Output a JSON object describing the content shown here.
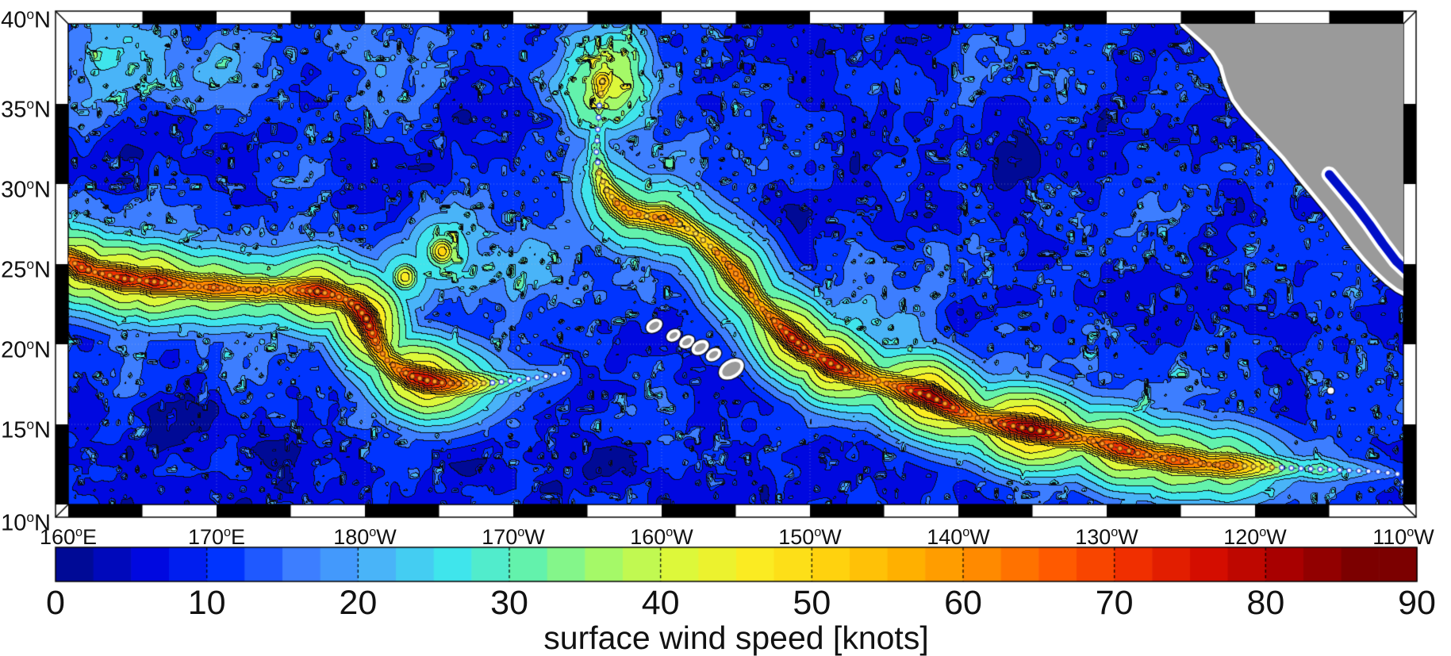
{
  "figure": {
    "type": "filled-contour-map",
    "title": "surface wind speed [knots]"
  },
  "axes": {
    "x_ticks": [
      {
        "label": "160°E",
        "lon": 160
      },
      {
        "label": "170°E",
        "lon": 170
      },
      {
        "label": "180°W",
        "lon": 180
      },
      {
        "label": "170°W",
        "lon": 190
      },
      {
        "label": "160°W",
        "lon": 200
      },
      {
        "label": "150°W",
        "lon": 210
      },
      {
        "label": "140°W",
        "lon": 220
      },
      {
        "label": "130°W",
        "lon": 230
      },
      {
        "label": "120°W",
        "lon": 240
      },
      {
        "label": "110°W",
        "lon": 250
      }
    ],
    "y_ticks": [
      {
        "label": "40°N",
        "lat": 40
      },
      {
        "label": "35°N",
        "lat": 35
      },
      {
        "label": "30°N",
        "lat": 30
      },
      {
        "label": "25°N",
        "lat": 25
      },
      {
        "label": "20°N",
        "lat": 20
      },
      {
        "label": "15°N",
        "lat": 15
      },
      {
        "label": "10°N",
        "lat": 10
      }
    ]
  },
  "colorbar": {
    "label": "surface wind speed [knots]",
    "orientation": "horizontal",
    "min": 0,
    "max": 90,
    "segment_step": 2.5,
    "tick_values": [
      0,
      10,
      20,
      30,
      40,
      50,
      60,
      70,
      80,
      90
    ],
    "tick_labels": [
      "0",
      "10",
      "20",
      "30",
      "40",
      "50",
      "60",
      "70",
      "80",
      "90"
    ]
  },
  "chart_data": {
    "type": "heatmap",
    "title": "surface wind speed [knots]",
    "units": "knots",
    "lon_range_deg_east": [
      160,
      250
    ],
    "lat_range_deg_north": [
      10,
      40
    ],
    "grid_lon_step": 10,
    "grid_lat_step": 5,
    "levels": [
      0,
      5,
      10,
      15,
      20,
      25,
      30,
      35,
      40,
      45,
      50,
      55,
      60,
      65,
      70,
      75,
      80,
      85,
      90
    ],
    "palette": [
      "#000A96",
      "#0008E0",
      "#0034FE",
      "#3D7EFF",
      "#49B4F8",
      "#3FE5EC",
      "#63F2AC",
      "#A5F968",
      "#DDF83A",
      "#FBEB22",
      "#FFD20E",
      "#FFB000",
      "#FF8A00",
      "#FF5A00",
      "#F02F00",
      "#D40D00",
      "#A80000",
      "#7C0000"
    ],
    "land_color": "#9A9A9A",
    "coast_buffer_color": "#FFFFFF",
    "contour_line_color": "#0A0C12",
    "tracks": [
      {
        "name": "storm-track-west",
        "points": [
          [
            160.0,
            25.3,
            66
          ],
          [
            160.9,
            24.8,
            76
          ],
          [
            161.8,
            24.5,
            70
          ],
          [
            162.8,
            24.3,
            74
          ],
          [
            163.8,
            24.1,
            79
          ],
          [
            164.8,
            24.0,
            72
          ],
          [
            165.8,
            23.9,
            79
          ],
          [
            166.8,
            23.8,
            72
          ],
          [
            167.8,
            23.7,
            66
          ],
          [
            168.8,
            23.6,
            64
          ],
          [
            169.8,
            23.55,
            68
          ],
          [
            170.8,
            23.5,
            64
          ],
          [
            171.8,
            23.45,
            60
          ],
          [
            172.8,
            23.4,
            62
          ],
          [
            173.8,
            23.4,
            58
          ],
          [
            174.8,
            23.4,
            62
          ],
          [
            175.8,
            23.35,
            70
          ],
          [
            176.8,
            23.3,
            78
          ],
          [
            177.8,
            23.1,
            72
          ],
          [
            178.7,
            22.8,
            68
          ],
          [
            179.5,
            22.3,
            78
          ],
          [
            180.1,
            21.6,
            84
          ],
          [
            180.5,
            20.7,
            76
          ],
          [
            180.9,
            19.8,
            64
          ],
          [
            181.5,
            19.0,
            58
          ],
          [
            182.3,
            18.4,
            66
          ],
          [
            183.2,
            18.0,
            78
          ],
          [
            184.2,
            17.75,
            82
          ],
          [
            185.2,
            17.6,
            74
          ],
          [
            186.3,
            17.55,
            62
          ],
          [
            187.4,
            17.55,
            50
          ],
          [
            188.6,
            17.6,
            38
          ],
          [
            189.8,
            17.7,
            30
          ],
          [
            191.0,
            17.85,
            25
          ],
          [
            192.2,
            18.0,
            21
          ],
          [
            193.4,
            18.2,
            18
          ]
        ]
      },
      {
        "name": "storm-track-east",
        "points": [
          [
            196.0,
            36.4,
            57
          ],
          [
            195.8,
            34.9,
            38
          ],
          [
            195.7,
            33.4,
            30
          ],
          [
            195.6,
            32.0,
            32
          ],
          [
            195.8,
            30.7,
            42
          ],
          [
            196.3,
            29.6,
            52
          ],
          [
            197.0,
            28.8,
            58
          ],
          [
            197.9,
            28.2,
            60
          ],
          [
            199.0,
            28.0,
            57
          ],
          [
            200.1,
            27.9,
            62
          ],
          [
            201.2,
            27.5,
            57
          ],
          [
            202.3,
            26.9,
            52
          ],
          [
            203.3,
            26.1,
            56
          ],
          [
            204.2,
            25.3,
            60
          ],
          [
            205.0,
            24.4,
            66
          ],
          [
            205.7,
            23.5,
            62
          ],
          [
            206.4,
            22.6,
            58
          ],
          [
            207.2,
            21.8,
            63
          ],
          [
            208.0,
            21.1,
            72
          ],
          [
            208.8,
            20.4,
            80
          ],
          [
            209.6,
            19.8,
            78
          ],
          [
            210.5,
            19.3,
            70
          ],
          [
            211.4,
            18.8,
            82
          ],
          [
            212.4,
            18.4,
            74
          ],
          [
            213.5,
            18.0,
            64
          ],
          [
            214.6,
            17.7,
            58
          ],
          [
            215.7,
            17.4,
            64
          ],
          [
            216.8,
            17.1,
            76
          ],
          [
            218.0,
            16.8,
            86
          ],
          [
            219.1,
            16.3,
            80
          ],
          [
            220.2,
            15.8,
            70
          ],
          [
            221.3,
            15.4,
            62
          ],
          [
            222.5,
            15.1,
            68
          ],
          [
            223.7,
            14.9,
            82
          ],
          [
            224.9,
            14.7,
            88
          ],
          [
            226.1,
            14.5,
            80
          ],
          [
            227.3,
            14.3,
            68
          ],
          [
            228.5,
            14.1,
            60
          ],
          [
            229.7,
            13.8,
            68
          ],
          [
            230.9,
            13.5,
            76
          ],
          [
            232.1,
            13.2,
            70
          ],
          [
            233.3,
            13.0,
            64
          ],
          [
            234.5,
            12.8,
            70
          ],
          [
            235.7,
            12.65,
            66
          ],
          [
            236.9,
            12.5,
            60
          ],
          [
            238.1,
            12.45,
            64
          ],
          [
            239.3,
            12.4,
            56
          ],
          [
            240.5,
            12.35,
            46
          ],
          [
            241.8,
            12.3,
            36
          ],
          [
            243.1,
            12.25,
            30
          ],
          [
            244.4,
            12.2,
            33
          ],
          [
            245.7,
            12.15,
            26
          ],
          [
            247.0,
            12.1,
            22
          ],
          [
            248.3,
            12.05,
            18
          ],
          [
            249.6,
            11.9,
            15
          ],
          [
            250.4,
            10.9,
            12
          ]
        ]
      }
    ],
    "secondary_maxima": [
      [
        185.2,
        25.8,
        53
      ],
      [
        182.7,
        24.2,
        48
      ]
    ],
    "broad_highs": [
      [
        163,
        38,
        16,
        2.2
      ],
      [
        170,
        37.5,
        10,
        2.0
      ],
      [
        196.2,
        36.4,
        30,
        2.4
      ],
      [
        181,
        37,
        12,
        2.0
      ],
      [
        165,
        25,
        14,
        3.0
      ],
      [
        174,
        23.5,
        12,
        2.5
      ],
      [
        185.5,
        25.8,
        18,
        1.8
      ],
      [
        191,
        25,
        12,
        2.0
      ],
      [
        199,
        28.5,
        12,
        2.2
      ],
      [
        214,
        20.5,
        12,
        3.0
      ],
      [
        224,
        15.5,
        12,
        3.0
      ],
      [
        233,
        13.5,
        10,
        2.5
      ],
      [
        244,
        12.3,
        8,
        2.0
      ],
      [
        172,
        18,
        8,
        2.0
      ]
    ],
    "calm_patches": [
      [
        169,
        16,
        1.6
      ],
      [
        172.5,
        14.8,
        1.5
      ],
      [
        174.5,
        13.2,
        1.2
      ],
      [
        166,
        14.3,
        1.1
      ],
      [
        161.5,
        21,
        1.0
      ],
      [
        171,
        21.5,
        0.9
      ],
      [
        186.5,
        13.5,
        1.2
      ],
      [
        196,
        12.5,
        1.0
      ],
      [
        205.5,
        17.6,
        0.9
      ],
      [
        216,
        26.5,
        1.1
      ],
      [
        224,
        31,
        1.3
      ],
      [
        229.5,
        34,
        1.2
      ],
      [
        233,
        23,
        1.0
      ],
      [
        242,
        13.5,
        1.1
      ],
      [
        247.5,
        37,
        1.3
      ],
      [
        164,
        31,
        1.0
      ],
      [
        179,
        33,
        1.1
      ],
      [
        186,
        35,
        1.0
      ],
      [
        209,
        28,
        0.9
      ],
      [
        220,
        22.5,
        0.9
      ]
    ],
    "land": {
      "coastline": [
        [
          235.2,
          40
        ],
        [
          236.3,
          39.1
        ],
        [
          237.2,
          38.3
        ],
        [
          237.8,
          37.4
        ],
        [
          238.1,
          36.4
        ],
        [
          238.6,
          35.3
        ],
        [
          239.3,
          34.4
        ],
        [
          240.2,
          33.5
        ],
        [
          241.1,
          32.6
        ],
        [
          242.0,
          31.7
        ],
        [
          242.6,
          31.0
        ],
        [
          243.4,
          30.1
        ],
        [
          244.2,
          29.2
        ],
        [
          245.0,
          28.3
        ],
        [
          245.8,
          27.3
        ],
        [
          246.6,
          26.3
        ],
        [
          247.4,
          25.4
        ],
        [
          248.2,
          24.6
        ],
        [
          248.9,
          24.0
        ],
        [
          249.6,
          23.5
        ],
        [
          250.4,
          23.1
        ]
      ],
      "gulf_of_california": [
        [
          245.0,
          30.6
        ],
        [
          245.9,
          29.6
        ],
        [
          246.8,
          28.6
        ],
        [
          247.7,
          27.5
        ],
        [
          248.6,
          26.3
        ],
        [
          249.5,
          25.2
        ],
        [
          250.3,
          24.5
        ]
      ],
      "hawaii_islands": [
        [
          199.5,
          21.15,
          5
        ],
        [
          200.8,
          20.55,
          4
        ],
        [
          201.7,
          20.15,
          4.5
        ],
        [
          202.6,
          19.8,
          5.5
        ],
        [
          203.5,
          19.35,
          4.5
        ],
        [
          204.7,
          18.45,
          9
        ]
      ],
      "small_white_island": [
        245.1,
        17.1
      ]
    },
    "track_marker_classes": [
      {
        "max_kt": 40,
        "fill": "#EEF4FF",
        "stroke": "#2B50D8"
      },
      {
        "max_kt": 58,
        "fill": "#FFE14A",
        "stroke": "#77591B"
      },
      {
        "max_kt": 999,
        "fill": "#FF9A28",
        "stroke": "#8A3A00"
      }
    ]
  }
}
